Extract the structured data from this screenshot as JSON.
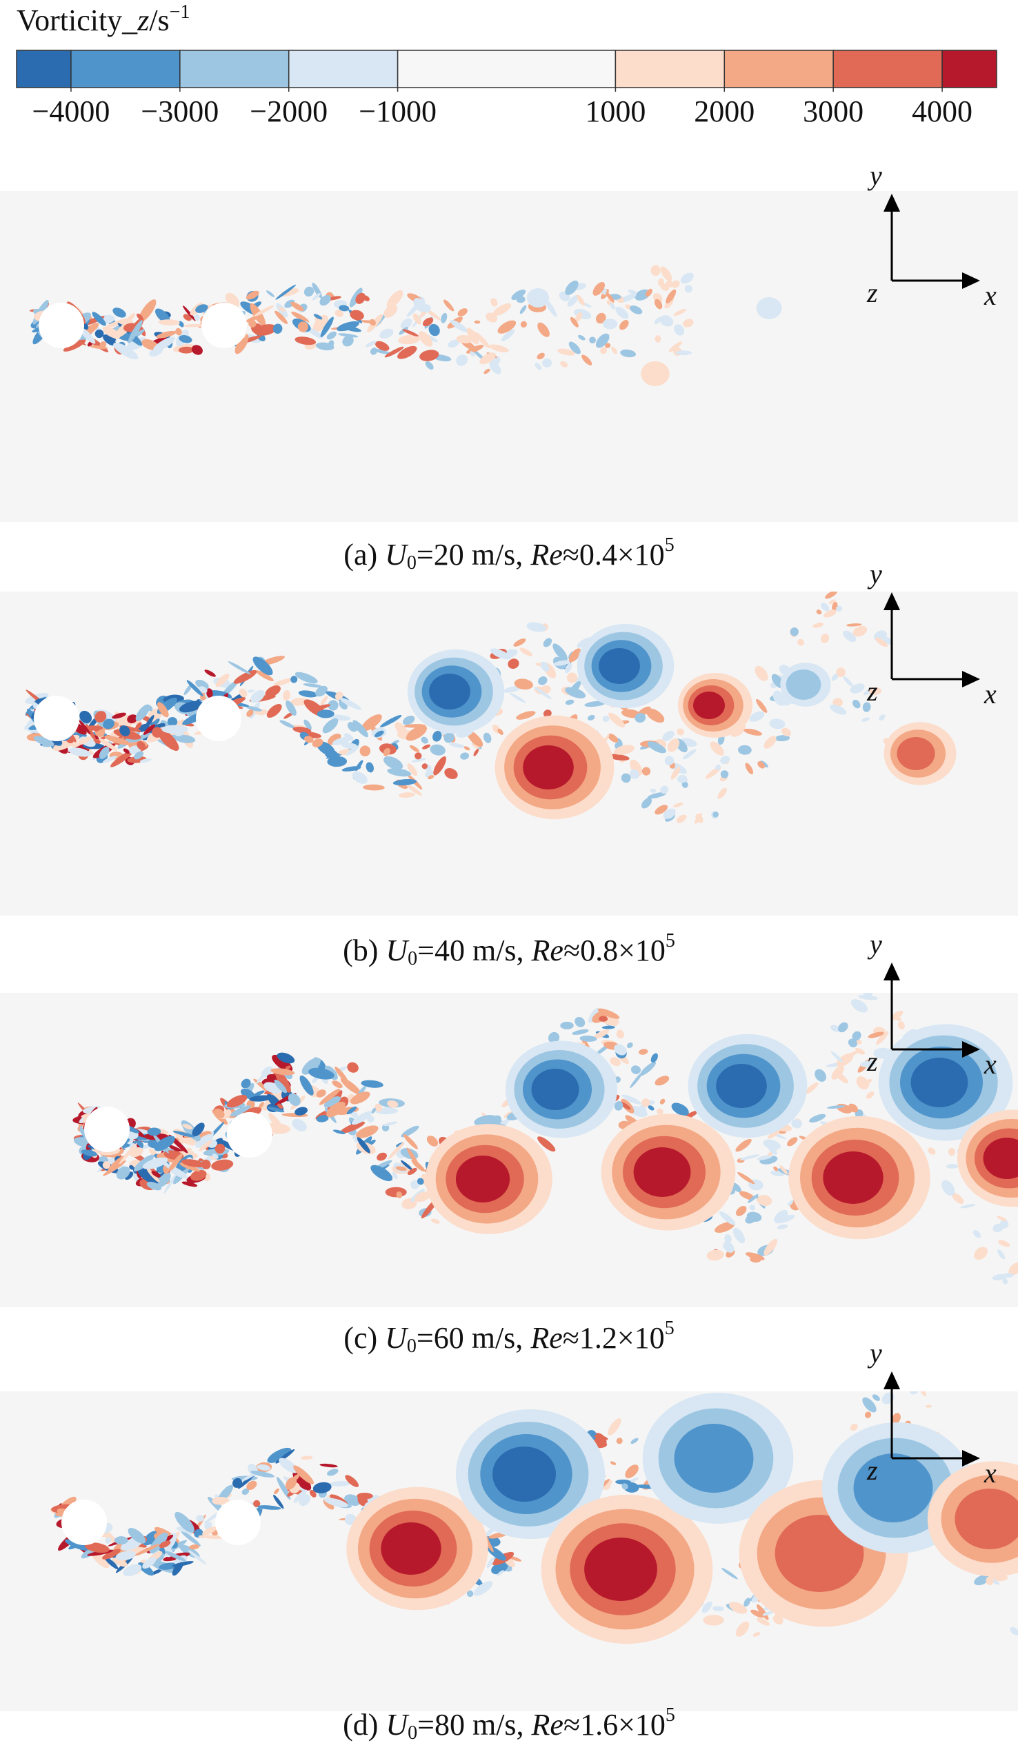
{
  "colorbar": {
    "label": [
      "Vorticity_",
      "z",
      "/s",
      "−1"
    ],
    "lim": [
      -4500,
      4500
    ],
    "colors": [
      "#2b6cb0",
      "#4f94cb",
      "#9dc6e3",
      "#d8e7f3",
      "#f7f7f7",
      "#fcdcca",
      "#f3a886",
      "#e06a55",
      "#b7192c"
    ],
    "ticks": [
      {
        "value": -4000,
        "label": "−4000"
      },
      {
        "value": -3000,
        "label": "−3000"
      },
      {
        "value": -2000,
        "label": "−2000"
      },
      {
        "value": -1000,
        "label": "−1000"
      },
      1000,
      2000,
      3000,
      4000
    ]
  },
  "axis_labels": {
    "x": "x",
    "y": "y",
    "z": "z"
  },
  "panels": [
    {
      "caption": [
        "(a) ",
        "U",
        "0",
        "=20 m/s, ",
        "Re",
        "≈0.4×10",
        "5"
      ]
    },
    {
      "caption": [
        "(b) ",
        "U",
        "0",
        "=40 m/s, ",
        "Re",
        "≈0.8×10",
        "5"
      ]
    },
    {
      "caption": [
        "(c) ",
        "U",
        "0",
        "=60 m/s, ",
        "Re",
        "≈1.2×10",
        "5"
      ]
    },
    {
      "caption": [
        "(d) ",
        "U",
        "0",
        "=80 m/s, ",
        "Re",
        "≈1.6×10",
        "5"
      ]
    }
  ]
}
